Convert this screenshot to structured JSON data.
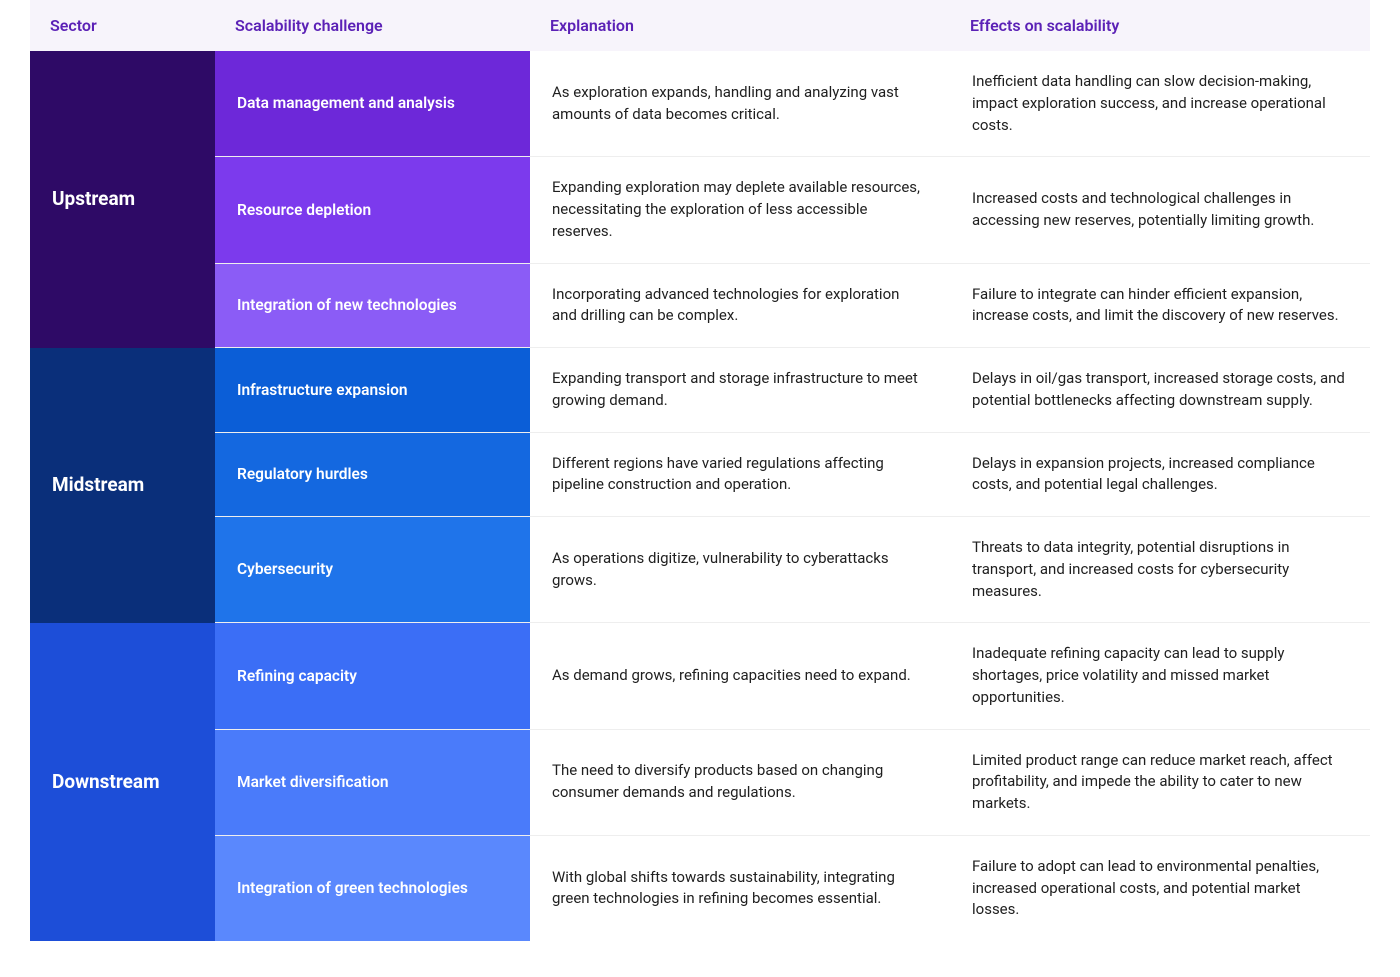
{
  "header": {
    "sector": "Sector",
    "challenge": "Scalability challenge",
    "explanation": "Explanation",
    "effects": "Effects on scalability",
    "bg_color": "#f7f4fb",
    "text_color": "#5b21b6"
  },
  "text_cell": {
    "color": "#1f1f1f",
    "font_size": 15
  },
  "sectors": [
    {
      "name": "Upstream",
      "sector_bg": "#2e0a66",
      "challenge_bgs": [
        "#6d28d9",
        "#7c3aed",
        "#8b5cf6"
      ],
      "rows": [
        {
          "challenge": "Data management and analysis",
          "explanation": "As exploration expands, handling and analyzing vast amounts of data becomes critical.",
          "effects": "Inefficient data handling can slow decision-making, impact exploration success, and increase operational costs."
        },
        {
          "challenge": "Resource depletion",
          "explanation": "Expanding exploration may deplete available resources, necessitating the exploration of less accessible reserves.",
          "effects": "Increased costs and technological challenges in accessing new reserves, potentially limiting growth."
        },
        {
          "challenge": "Integration of new technologies",
          "explanation": "Incorporating advanced technologies for exploration and drilling can be complex.",
          "effects": "Failure to integrate can hinder efficient expansion, increase costs, and limit the discovery of new reserves."
        }
      ]
    },
    {
      "name": "Midstream",
      "sector_bg": "#0a2f7a",
      "challenge_bgs": [
        "#0b5ed7",
        "#1468e0",
        "#1f74ea"
      ],
      "rows": [
        {
          "challenge": "Infrastructure expansion",
          "explanation": "Expanding transport and storage infrastructure to meet growing demand.",
          "effects": "Delays in oil/gas transport, increased storage costs, and potential bottlenecks affecting downstream supply."
        },
        {
          "challenge": "Regulatory hurdles",
          "explanation": "Different regions have varied regulations affecting pipeline construction and operation.",
          "effects": "Delays in expansion projects, increased compliance costs, and potential legal challenges."
        },
        {
          "challenge": "Cybersecurity",
          "explanation": "As operations digitize, vulnerability to cyberattacks grows.",
          "effects": "Threats to data integrity, potential disruptions in transport, and increased costs for cybersecurity measures."
        }
      ]
    },
    {
      "name": "Downstream",
      "sector_bg": "#1d4ed8",
      "challenge_bgs": [
        "#3b6ef6",
        "#4a7bfa",
        "#5a88fd"
      ],
      "rows": [
        {
          "challenge": "Refining capacity",
          "explanation": "As demand grows, refining capacities need to expand.",
          "effects": "Inadequate refining capacity can lead to supply shortages, price volatility and missed market opportunities."
        },
        {
          "challenge": "Market diversification",
          "explanation": "The need to diversify products based on changing consumer demands and regulations.",
          "effects": "Limited product range can reduce market reach, affect profitability, and impede the ability to cater to new markets."
        },
        {
          "challenge": "Integration of green technologies",
          "explanation": "With global shifts towards sustainability, integrating green technologies in refining becomes essential.",
          "effects": "Failure to adopt can lead to environmental penalties, increased operational costs, and potential market losses."
        }
      ]
    }
  ]
}
